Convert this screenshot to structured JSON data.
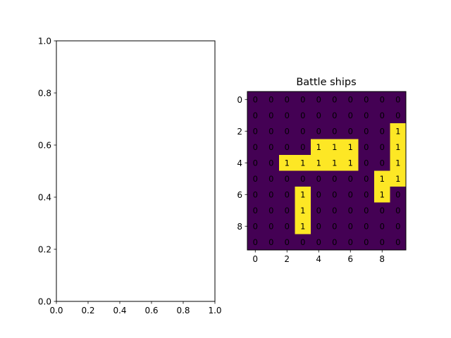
{
  "chart_data": [
    {
      "type": "line",
      "title": "",
      "xlabel": "",
      "ylabel": "",
      "xlim": [
        0,
        1
      ],
      "ylim": [
        0,
        1
      ],
      "x_ticks": [
        "0.0",
        "0.2",
        "0.4",
        "0.6",
        "0.8",
        "1.0"
      ],
      "y_ticks": [
        "0.0",
        "0.2",
        "0.4",
        "0.6",
        "0.8",
        "1.0"
      ],
      "series": []
    },
    {
      "type": "heatmap",
      "title": "Battle ships",
      "colormap": "viridis",
      "colors": {
        "low": "#440154",
        "high": "#fde725"
      },
      "x_ticks": [
        "0",
        "2",
        "4",
        "6",
        "8"
      ],
      "y_ticks": [
        "0",
        "2",
        "4",
        "6",
        "8"
      ],
      "grid": [
        [
          0,
          0,
          0,
          0,
          0,
          0,
          0,
          0,
          0,
          0
        ],
        [
          0,
          0,
          0,
          0,
          0,
          0,
          0,
          0,
          0,
          0
        ],
        [
          0,
          0,
          0,
          0,
          0,
          0,
          0,
          0,
          0,
          1
        ],
        [
          0,
          0,
          0,
          0,
          1,
          1,
          1,
          0,
          0,
          1
        ],
        [
          0,
          0,
          1,
          1,
          1,
          1,
          1,
          0,
          0,
          1
        ],
        [
          0,
          0,
          0,
          0,
          0,
          0,
          0,
          0,
          1,
          1
        ],
        [
          0,
          0,
          0,
          1,
          0,
          0,
          0,
          0,
          1,
          0
        ],
        [
          0,
          0,
          0,
          1,
          0,
          0,
          0,
          0,
          0,
          0
        ],
        [
          0,
          0,
          0,
          1,
          0,
          0,
          0,
          0,
          0,
          0
        ],
        [
          0,
          0,
          0,
          0,
          0,
          0,
          0,
          0,
          0,
          0
        ]
      ]
    }
  ]
}
